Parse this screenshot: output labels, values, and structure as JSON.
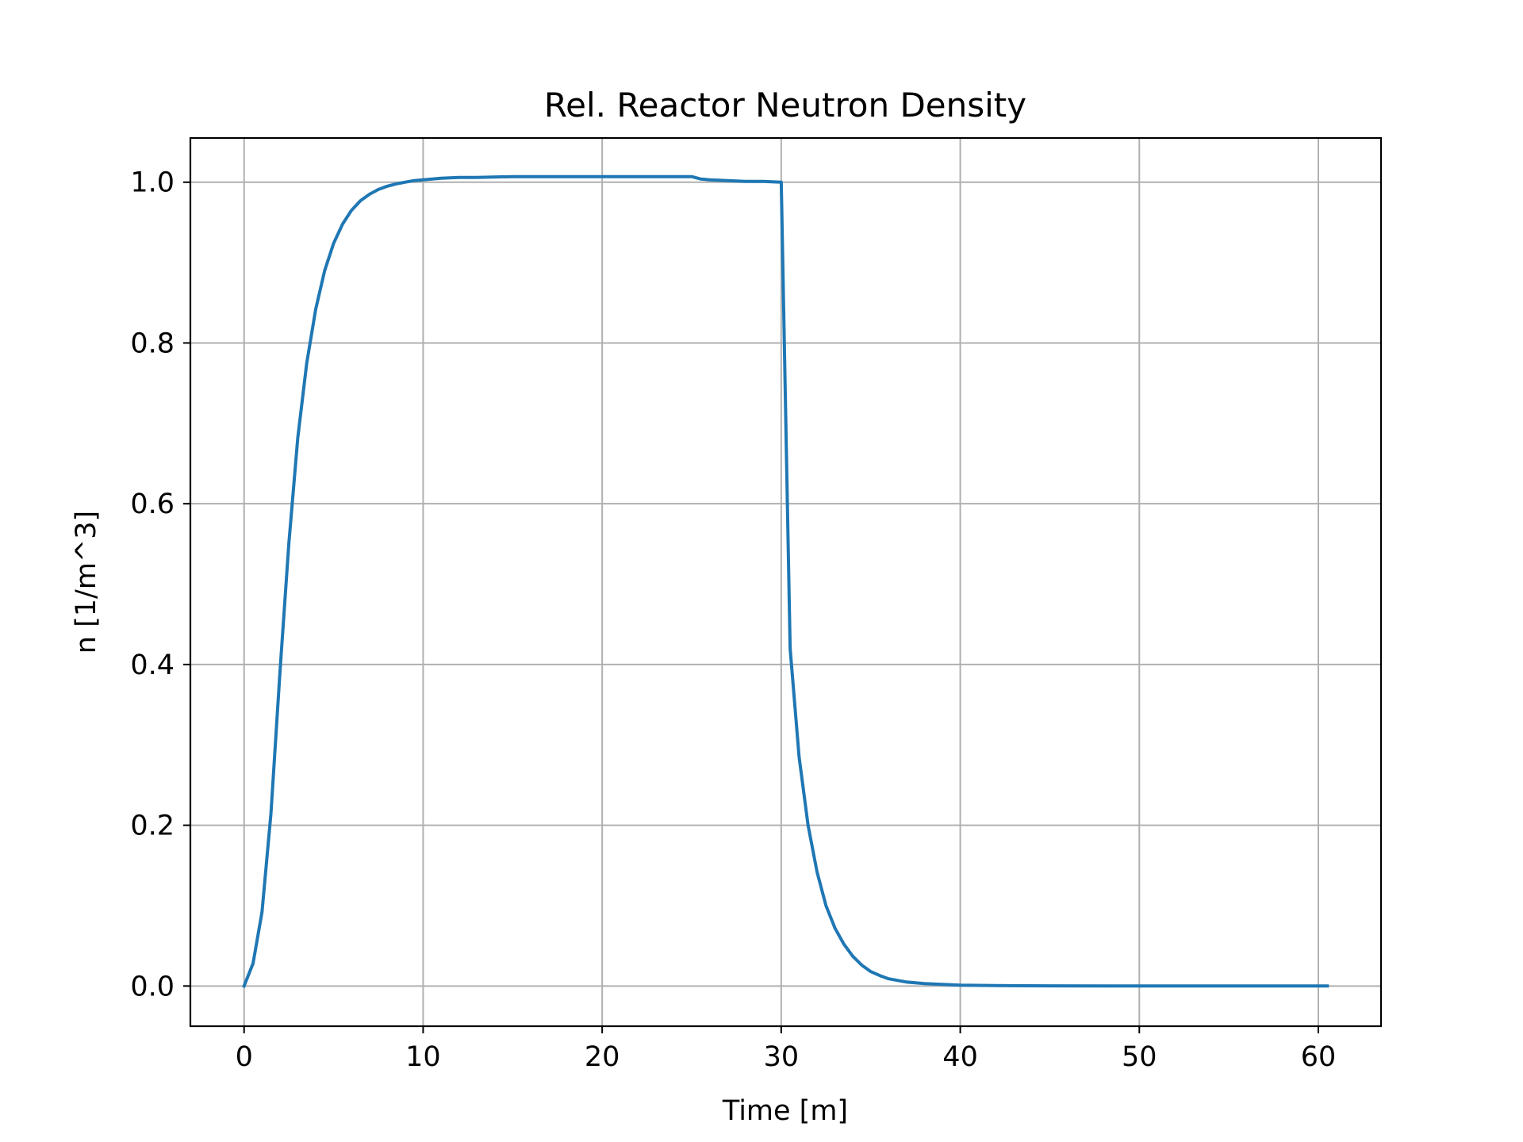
{
  "chart_data": {
    "type": "line",
    "title": "Rel. Reactor Neutron Density",
    "xlabel": "Time [m]",
    "ylabel": "n [1/m^3]",
    "xlim": [
      -3,
      63.5
    ],
    "ylim": [
      -0.05,
      1.055
    ],
    "xticks": [
      0,
      10,
      20,
      30,
      40,
      50,
      60
    ],
    "xtick_labels": [
      "0",
      "10",
      "20",
      "30",
      "40",
      "50",
      "60"
    ],
    "yticks": [
      0.0,
      0.2,
      0.4,
      0.6,
      0.8,
      1.0
    ],
    "ytick_labels": [
      "0.0",
      "0.2",
      "0.4",
      "0.6",
      "0.8",
      "1.0"
    ],
    "grid": true,
    "line_color": "#1f77b4",
    "grid_color": "#b0b0b0",
    "series": [
      {
        "x": [
          0,
          0.5,
          1.0,
          1.5,
          2.0,
          2.5,
          3.0,
          3.5,
          4.0,
          4.5,
          5.0,
          5.5,
          6.0,
          6.5,
          7.0,
          7.5,
          8.0,
          8.5,
          9.0,
          9.5,
          10.0,
          11.0,
          12.0,
          13.0,
          15.0,
          18.0,
          20.0,
          22.0,
          24.0,
          25.0,
          25.5,
          26.0,
          27.0,
          28.0,
          29.0,
          30.0,
          30.5,
          31.0,
          31.5,
          32.0,
          32.5,
          33.0,
          33.5,
          34.0,
          34.5,
          35.0,
          35.5,
          36.0,
          37.0,
          38.0,
          39.0,
          40.0,
          42.0,
          45.0,
          50.0,
          55.0,
          60.5
        ],
        "y": [
          0.0,
          0.028,
          0.092,
          0.215,
          0.39,
          0.55,
          0.682,
          0.775,
          0.842,
          0.89,
          0.924,
          0.948,
          0.965,
          0.977,
          0.985,
          0.991,
          0.995,
          0.998,
          1.0,
          1.002,
          1.003,
          1.005,
          1.006,
          1.006,
          1.007,
          1.007,
          1.007,
          1.007,
          1.007,
          1.007,
          1.004,
          1.003,
          1.002,
          1.001,
          1.001,
          1.0,
          0.42,
          0.285,
          0.2,
          0.142,
          0.1,
          0.072,
          0.052,
          0.037,
          0.026,
          0.018,
          0.013,
          0.009,
          0.005,
          0.003,
          0.002,
          0.001,
          0.0005,
          0.0002,
          0.0,
          0.0,
          0.0
        ]
      }
    ]
  }
}
